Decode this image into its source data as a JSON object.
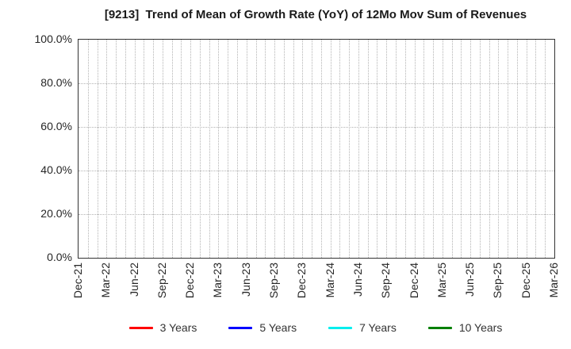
{
  "figure": {
    "title": "[9213]  Trend of Mean of Growth Rate (YoY) of 12Mo Mov Sum of Revenues"
  },
  "chart_data": {
    "type": "line",
    "title": "[9213]  Trend of Mean of Growth Rate (YoY) of 12Mo Mov Sum of Revenues",
    "x_tick_labels": [
      "Dec-21",
      "Mar-22",
      "Jun-22",
      "Sep-22",
      "Dec-22",
      "Mar-23",
      "Jun-23",
      "Sep-23",
      "Dec-23",
      "Mar-24",
      "Jun-24",
      "Sep-24",
      "Dec-24",
      "Mar-25",
      "Jun-25",
      "Sep-25",
      "Dec-25",
      "Mar-26"
    ],
    "x_total_months": 51,
    "x_label_interval_months": 3,
    "y_tick_labels": [
      "0.0%",
      "20.0%",
      "40.0%",
      "60.0%",
      "80.0%",
      "100.0%"
    ],
    "y_tick_values": [
      0,
      20,
      40,
      60,
      80,
      100
    ],
    "y_grid_values": [
      20,
      40,
      60,
      80
    ],
    "ylim": [
      0,
      100
    ],
    "grid": "dotted",
    "legend_position": "bottom",
    "series": [
      {
        "name": "3 Years",
        "color": "#ff0000",
        "values": []
      },
      {
        "name": "5 Years",
        "color": "#0000ff",
        "values": []
      },
      {
        "name": "7 Years",
        "color": "#00eeee",
        "values": []
      },
      {
        "name": "10 Years",
        "color": "#008000",
        "values": []
      }
    ],
    "colors": {
      "grid": "#b3b3b3",
      "axis_border": "#333333",
      "tick_text": "#262626",
      "title_text": "#1a1a1a",
      "legend_text": "#333333"
    }
  }
}
